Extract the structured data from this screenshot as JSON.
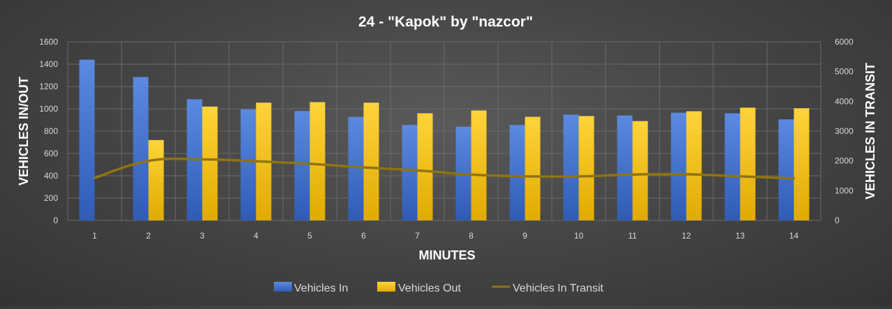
{
  "chart_data": {
    "type": "bar",
    "title": "24 - \"Kapok\" by \"nazcor\"",
    "xlabel": "MINUTES",
    "ylabel": "VEHICLES IN/OUT",
    "y2label": "VEHICLES IN TRANSIT",
    "categories": [
      "1",
      "2",
      "3",
      "4",
      "5",
      "6",
      "7",
      "8",
      "9",
      "10",
      "11",
      "12",
      "13",
      "14"
    ],
    "ylim": [
      0,
      1600
    ],
    "yticks": [
      "0",
      "200",
      "400",
      "600",
      "800",
      "1000",
      "1200",
      "1400",
      "1600"
    ],
    "y2lim": [
      0,
      6000
    ],
    "y2ticks": [
      "0",
      "1000",
      "2000",
      "3000",
      "4000",
      "5000",
      "6000"
    ],
    "grid": true,
    "legend_position": "bottom",
    "series": [
      {
        "name": "Vehicles In",
        "kind": "bar",
        "axis": "left",
        "color": "#4472c4",
        "values": [
          1440,
          1285,
          1085,
          995,
          980,
          928,
          855,
          840,
          855,
          948,
          940,
          965,
          960,
          905
        ]
      },
      {
        "name": "Vehicles Out",
        "kind": "bar",
        "axis": "left",
        "color": "#ffc000",
        "values": [
          0,
          720,
          1020,
          1055,
          1060,
          1055,
          960,
          985,
          928,
          935,
          890,
          978,
          1010,
          1005
        ]
      },
      {
        "name": "Vehicles In Transit",
        "kind": "line",
        "axis": "right",
        "color": "#8f7410",
        "values": [
          1430,
          2000,
          2050,
          1990,
          1900,
          1780,
          1680,
          1540,
          1480,
          1480,
          1540,
          1550,
          1480,
          1410
        ]
      }
    ]
  }
}
